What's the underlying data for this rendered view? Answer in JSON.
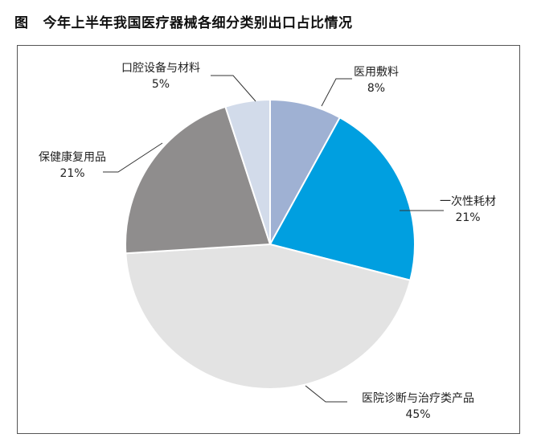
{
  "figure_label": "图",
  "title": "今年上半年我国医疗器械各细分类别出口占比情况",
  "colors": {
    "frame": "#555555",
    "leader": "#333333",
    "slice_stroke": "#ffffff"
  },
  "chart_data": {
    "type": "pie",
    "title": "今年上半年我国医疗器械各细分类别出口占比情况",
    "categories": [
      "医用敷料",
      "一次性耗材",
      "医院诊断与治疗类产品",
      "保健康复用品",
      "口腔设备与材料"
    ],
    "values": [
      8,
      21,
      45,
      21,
      5
    ],
    "value_labels": [
      "8%",
      "21%",
      "45%",
      "21%",
      "5%"
    ],
    "colors": [
      "#9fb1d3",
      "#009fe0",
      "#e3e3e3",
      "#8f8d8d",
      "#d2dbea"
    ],
    "start_angle_deg": 0,
    "direction": "clockwise",
    "legend": "none",
    "labels_outside_with_leader_lines": true
  }
}
